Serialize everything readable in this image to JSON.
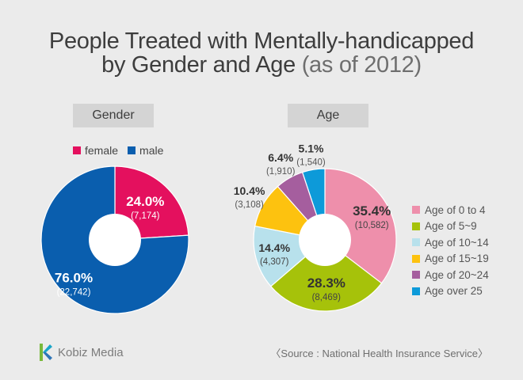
{
  "title": {
    "line1": "People Treated with Mentally-handicapped",
    "line2_main": "by Gender and Age",
    "line2_sub": "(as of 2012)"
  },
  "colors": {
    "female": "#e4105e",
    "male": "#0a5eae",
    "age0_4": "#ee8fab",
    "age5_9": "#a6c20a",
    "age10_14": "#b8e1ec",
    "age15_19": "#fdc20f",
    "age20_24": "#a55e9e",
    "age25plus": "#0d9ad9"
  },
  "gender": {
    "section_label": "Gender",
    "legend": [
      "female",
      "male"
    ]
  },
  "age": {
    "section_label": "Age",
    "legend": [
      "Age of 0 to 4",
      "Age of 5~9",
      "Age of 10~14",
      "Age of 15~19",
      "Age of 20~24",
      "Age over 25"
    ]
  },
  "chart_data": [
    {
      "type": "pie",
      "categories": [
        "female",
        "male"
      ],
      "values": [
        24.0,
        76.0
      ],
      "value_labels": [
        "24.0%",
        "76.0%"
      ],
      "counts": [
        7174,
        22742
      ],
      "count_labels": [
        "(7,174)",
        "(22,742)"
      ],
      "legend_position": "top"
    },
    {
      "type": "pie",
      "categories": [
        "Age of 0 to 4",
        "Age of 5~9",
        "Age of 10~14",
        "Age of 15~19",
        "Age of 20~24",
        "Age over 25"
      ],
      "values": [
        35.4,
        28.3,
        14.4,
        10.4,
        6.4,
        5.1
      ],
      "value_labels": [
        "35.4%",
        "28.3%",
        "14.4%",
        "10.4%",
        "6.4%",
        "5.1%"
      ],
      "counts": [
        10582,
        8469,
        4307,
        3108,
        1910,
        1540
      ],
      "count_labels": [
        "(10,582)",
        "(8,469)",
        "(4,307)",
        "(3,108)",
        "(1,910)",
        "(1,540)"
      ],
      "legend_position": "right"
    }
  ],
  "footer": {
    "brand": "Kobiz Media",
    "source": "〈Source : National Health Insurance Service〉"
  }
}
